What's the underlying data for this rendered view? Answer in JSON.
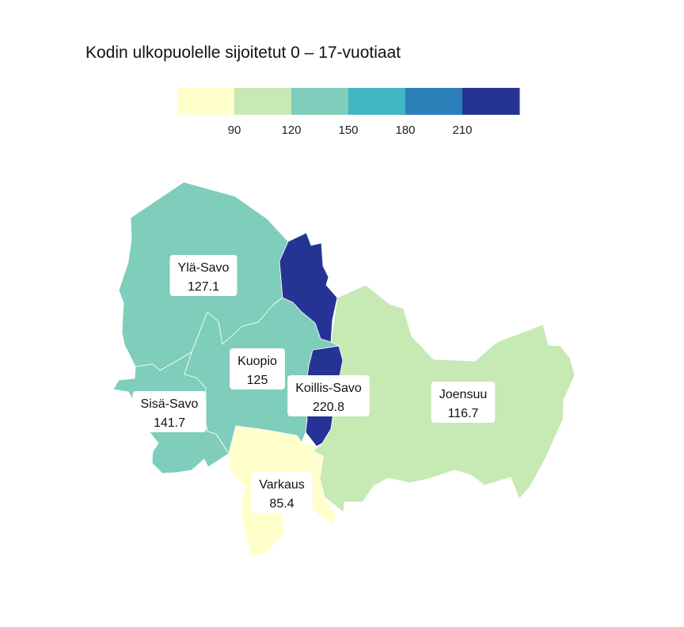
{
  "chart_data": {
    "type": "choropleth",
    "title": "Kodin ulkopuolelle sijoitetut 0 – 17-vuotiaat",
    "legend": {
      "breaks": [
        90,
        120,
        150,
        180,
        210
      ],
      "tick_labels": [
        "90",
        "120",
        "150",
        "180",
        "210"
      ],
      "colors": [
        "#ffffcc",
        "#c7e9b4",
        "#7fcdbb",
        "#41b6c4",
        "#2c7fb8",
        "#253494"
      ]
    },
    "regions": [
      {
        "id": "yla-savo",
        "name": "Ylä-Savo",
        "value": 127.1,
        "value_label": "127.1"
      },
      {
        "id": "kuopio",
        "name": "Kuopio",
        "value": 125,
        "value_label": "125"
      },
      {
        "id": "koillis-savo",
        "name": "Koillis-Savo",
        "value": 220.8,
        "value_label": "220.8"
      },
      {
        "id": "sisa-savo",
        "name": "Sisä-Savo",
        "value": 141.7,
        "value_label": "141.7"
      },
      {
        "id": "joensuu",
        "name": "Joensuu",
        "value": 116.7,
        "value_label": "116.7"
      },
      {
        "id": "varkaus",
        "name": "Varkaus",
        "value": 85.4,
        "value_label": "85.4"
      }
    ]
  }
}
